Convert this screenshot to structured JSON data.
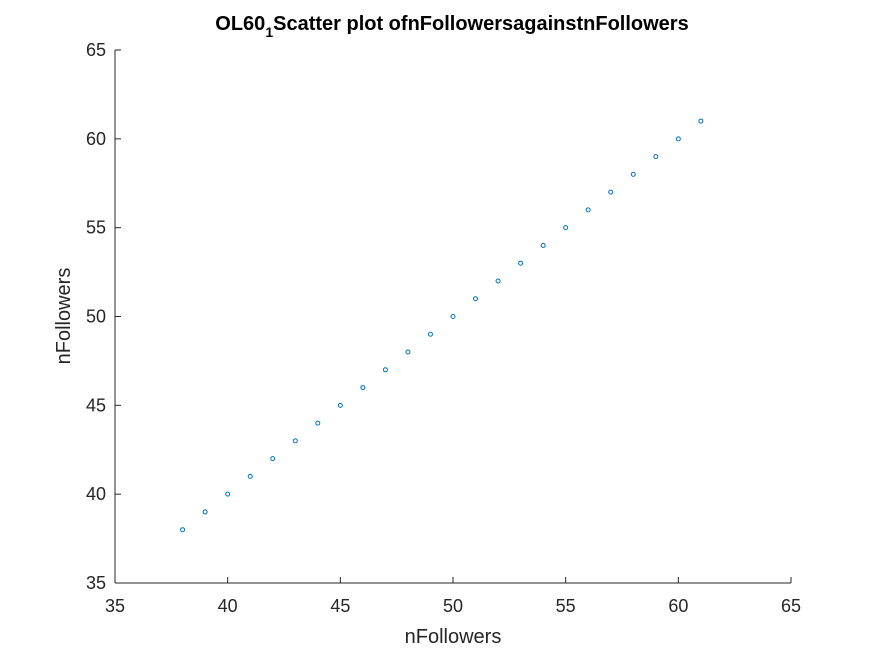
{
  "chart_data": {
    "type": "scatter",
    "title": {
      "main_prefix": "OL60",
      "subscript": "1",
      "main_suffix": "Scatter plot ofnFollowersagainstnFollowers"
    },
    "xlabel": "nFollowers",
    "ylabel": "nFollowers",
    "xlim": [
      35,
      65
    ],
    "ylim": [
      35,
      65
    ],
    "xticks": [
      35,
      40,
      45,
      50,
      55,
      60,
      65
    ],
    "yticks": [
      35,
      40,
      45,
      50,
      55,
      60,
      65
    ],
    "grid": false,
    "marker_color": "#0072BD",
    "axis_color": "#262626",
    "series": [
      {
        "x": [
          38,
          39,
          40,
          41,
          42,
          43,
          44,
          45,
          46,
          47,
          48,
          49,
          50,
          51,
          52,
          53,
          54,
          55,
          56,
          57,
          58,
          59,
          60,
          61
        ],
        "y": [
          38,
          39,
          40,
          41,
          42,
          43,
          44,
          45,
          46,
          47,
          48,
          49,
          50,
          51,
          52,
          53,
          54,
          55,
          56,
          57,
          58,
          59,
          60,
          61
        ]
      }
    ]
  }
}
